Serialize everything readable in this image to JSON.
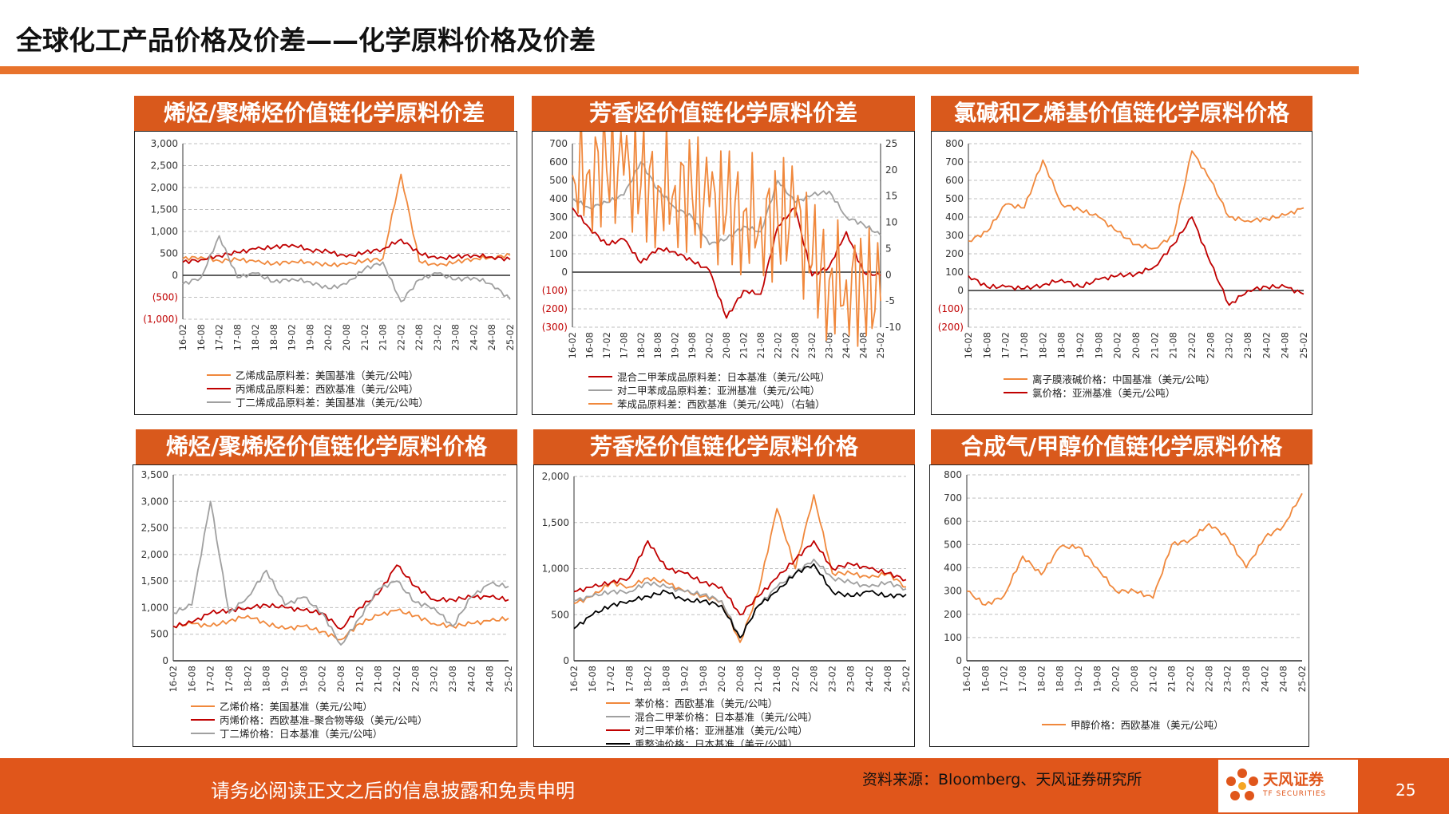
{
  "page": {
    "title": "全球化工产品价格及价差——化学原料价格及价差",
    "footer_notice": "请务必阅读正文之后的信息披露和免责申明",
    "source": "资料来源：Bloomberg、天风证券研究所",
    "page_number": "25",
    "logo_text": "天风证券",
    "logo_sub": "TF SECURITIES",
    "logo_icon": "flower-logo-icon"
  },
  "colors": {
    "accent_orange": "#E8732C",
    "header_orange": "#D9591C",
    "footer_orange": "#E0561B",
    "series_orange": "#F0883C",
    "series_red": "#C00000",
    "series_gray": "#A0A0A0",
    "series_black": "#000000"
  },
  "panels": [
    {
      "header": "烯烃/聚烯烃价值链化学原料价差"
    },
    {
      "header": "芳香烃价值链化学原料价差"
    },
    {
      "header": "氯碱和乙烯基价值链化学原料价格"
    },
    {
      "header": "烯烃/聚烯烃价值链化学原料价格"
    },
    {
      "header": "芳香烃价值链化学原料价格"
    },
    {
      "header": "合成气/甲醇价值链化学原料价格"
    }
  ],
  "chart_data": [
    {
      "type": "line",
      "x": [
        "16-02",
        "16-08",
        "17-02",
        "17-08",
        "18-02",
        "18-08",
        "19-02",
        "19-08",
        "20-02",
        "20-08",
        "21-02",
        "21-08",
        "22-02",
        "22-08",
        "23-02",
        "23-08",
        "24-02",
        "24-08",
        "25-02"
      ],
      "yticks": [
        "3,000",
        "2,500",
        "2,000",
        "1,500",
        "1,000",
        "500",
        "0",
        "(500)",
        "(1,000)"
      ],
      "ylim": [
        -1000,
        3000
      ],
      "series": [
        {
          "name": "乙烯成品原料差：美国基准（美元/公吨）",
          "color": "#F0883C",
          "values": [
            380,
            420,
            330,
            360,
            310,
            260,
            320,
            300,
            230,
            250,
            330,
            380,
            2300,
            320,
            220,
            300,
            380,
            410,
            460
          ]
        },
        {
          "name": "丙烯成品原料差：西欧基准（美元/公吨）",
          "color": "#C00000",
          "values": [
            300,
            360,
            450,
            520,
            600,
            640,
            700,
            580,
            540,
            420,
            520,
            600,
            820,
            500,
            380,
            420,
            460,
            420,
            360
          ]
        },
        {
          "name": "丁二烯成品原料差：美国基准（美元/公吨）",
          "color": "#A0A0A0",
          "values": [
            -200,
            -50,
            900,
            -50,
            50,
            -150,
            -80,
            -150,
            -300,
            -200,
            150,
            300,
            -600,
            -100,
            50,
            -100,
            -50,
            -200,
            -550
          ]
        }
      ]
    },
    {
      "type": "line",
      "x": [
        "16-02",
        "16-08",
        "17-02",
        "17-08",
        "18-02",
        "18-08",
        "19-02",
        "19-08",
        "20-02",
        "20-08",
        "21-02",
        "21-08",
        "22-02",
        "22-08",
        "23-02",
        "23-08",
        "24-02",
        "24-08",
        "25-02"
      ],
      "yticks": [
        "700",
        "600",
        "500",
        "400",
        "300",
        "200",
        "100",
        "0",
        "(100)",
        "(200)",
        "(300)"
      ],
      "yticks_right": [
        "25",
        "20",
        "15",
        "10",
        "5",
        "0",
        "-5",
        "-10"
      ],
      "ylim": [
        -300,
        700
      ],
      "ylim_right": [
        -10,
        25
      ],
      "series": [
        {
          "name": "混合二甲苯成品原料差：日本基准（美元/公吨）",
          "color": "#C00000",
          "axis": "left",
          "values": [
            350,
            240,
            150,
            180,
            50,
            130,
            110,
            60,
            10,
            -250,
            -100,
            -120,
            250,
            350,
            -20,
            30,
            220,
            0,
            -20
          ]
        },
        {
          "name": "对二甲苯成品原料差：亚洲基准（美元/公吨）",
          "color": "#A0A0A0",
          "axis": "left",
          "values": [
            400,
            350,
            380,
            420,
            600,
            450,
            350,
            300,
            150,
            180,
            250,
            220,
            500,
            380,
            420,
            440,
            300,
            260,
            200
          ]
        },
        {
          "name": "苯成品原料差：西欧基准（美元/公吨）（右轴）",
          "color": "#F0883C",
          "axis": "right",
          "values": [
            19,
            20,
            20,
            19,
            17,
            17,
            17,
            15,
            13,
            12,
            12,
            11,
            10,
            11,
            2,
            -1,
            -1,
            -2,
            -5
          ]
        }
      ]
    },
    {
      "type": "line",
      "x": [
        "16-02",
        "16-08",
        "17-02",
        "17-08",
        "18-02",
        "18-08",
        "19-02",
        "19-08",
        "20-02",
        "20-08",
        "21-02",
        "21-08",
        "22-02",
        "22-08",
        "23-02",
        "23-08",
        "24-02",
        "24-08",
        "25-02"
      ],
      "yticks": [
        "800",
        "700",
        "600",
        "500",
        "400",
        "300",
        "200",
        "100",
        "0",
        "(100)",
        "(200)"
      ],
      "ylim": [
        -200,
        800
      ],
      "series": [
        {
          "name": "离子膜液碱价格：中国基准（美元/公吨）",
          "color": "#F0883C",
          "values": [
            270,
            320,
            470,
            450,
            710,
            470,
            440,
            400,
            320,
            250,
            230,
            300,
            760,
            600,
            400,
            380,
            390,
            410,
            450
          ]
        },
        {
          "name": "氯价格：亚洲基准（美元/公吨）",
          "color": "#C00000",
          "values": [
            80,
            20,
            20,
            10,
            30,
            60,
            20,
            60,
            80,
            90,
            130,
            250,
            400,
            150,
            -80,
            0,
            20,
            20,
            -20
          ]
        }
      ]
    },
    {
      "type": "line",
      "x": [
        "16-02",
        "16-08",
        "17-02",
        "17-08",
        "18-02",
        "18-08",
        "19-02",
        "19-08",
        "20-02",
        "20-08",
        "21-02",
        "21-08",
        "22-02",
        "22-08",
        "23-02",
        "23-08",
        "24-02",
        "24-08",
        "25-02"
      ],
      "yticks": [
        "3,500",
        "3,000",
        "2,500",
        "2,000",
        "1,500",
        "1,000",
        "500",
        "0"
      ],
      "ylim": [
        0,
        3500
      ],
      "series": [
        {
          "name": "乙烯价格：美国基准（美元/公吨）",
          "color": "#F0883C",
          "values": [
            650,
            700,
            650,
            750,
            850,
            700,
            600,
            650,
            550,
            400,
            700,
            850,
            950,
            850,
            700,
            650,
            700,
            750,
            800
          ]
        },
        {
          "name": "丙烯价格：西欧基准–聚合物等级（美元/公吨）",
          "color": "#C00000",
          "values": [
            650,
            720,
            900,
            950,
            1000,
            1050,
            1000,
            950,
            900,
            600,
            1000,
            1250,
            1800,
            1400,
            1150,
            1150,
            1200,
            1200,
            1150
          ]
        },
        {
          "name": "丁二烯价格：日本基准（美元/公吨）",
          "color": "#A0A0A0",
          "values": [
            900,
            1050,
            3000,
            900,
            1200,
            1700,
            1050,
            1200,
            900,
            300,
            800,
            1350,
            1500,
            1100,
            1000,
            650,
            1200,
            1450,
            1400
          ]
        }
      ]
    },
    {
      "type": "line",
      "x": [
        "16-02",
        "16-08",
        "17-02",
        "17-08",
        "18-02",
        "18-08",
        "19-02",
        "19-08",
        "20-02",
        "20-08",
        "21-02",
        "21-08",
        "22-02",
        "22-08",
        "23-02",
        "23-08",
        "24-02",
        "24-08",
        "25-02"
      ],
      "yticks": [
        "2,000",
        "1,500",
        "1,000",
        "500",
        "0"
      ],
      "ylim": [
        0,
        2000
      ],
      "series": [
        {
          "name": "苯价格：西欧基准（美元/公吨）",
          "color": "#F0883C",
          "values": [
            620,
            700,
            850,
            800,
            900,
            850,
            750,
            700,
            650,
            200,
            750,
            1650,
            1000,
            1800,
            950,
            950,
            900,
            950,
            800
          ]
        },
        {
          "name": "混合二甲苯价格：日本基准（美元/公吨）",
          "color": "#A0A0A0",
          "values": [
            650,
            700,
            750,
            750,
            850,
            800,
            750,
            720,
            650,
            250,
            600,
            800,
            950,
            1100,
            900,
            850,
            800,
            850,
            780
          ]
        },
        {
          "name": "对二甲苯价格：亚洲基准（美元/公吨）",
          "color": "#C00000",
          "values": [
            750,
            800,
            850,
            900,
            1300,
            1000,
            950,
            850,
            800,
            500,
            700,
            900,
            1100,
            1300,
            1000,
            1050,
            1000,
            950,
            880
          ]
        },
        {
          "name": "重整油价格：日本基准（美元/公吨）",
          "color": "#000000",
          "values": [
            350,
            500,
            600,
            650,
            700,
            750,
            650,
            650,
            600,
            250,
            600,
            750,
            950,
            1050,
            750,
            700,
            750,
            700,
            720
          ]
        }
      ]
    },
    {
      "type": "line",
      "x": [
        "16-02",
        "16-08",
        "17-02",
        "17-08",
        "18-02",
        "18-08",
        "19-02",
        "19-08",
        "20-02",
        "20-08",
        "21-02",
        "21-08",
        "22-02",
        "22-08",
        "23-02",
        "23-08",
        "24-02",
        "24-08",
        "25-02"
      ],
      "yticks": [
        "800",
        "700",
        "600",
        "500",
        "400",
        "300",
        "200",
        "100",
        "0"
      ],
      "ylim": [
        0,
        800
      ],
      "series": [
        {
          "name": "甲醇价格：西欧基准（美元/公吨）",
          "color": "#F0883C",
          "values": [
            300,
            240,
            280,
            450,
            370,
            490,
            490,
            400,
            300,
            300,
            270,
            500,
            520,
            590,
            530,
            400,
            530,
            580,
            720
          ]
        }
      ]
    }
  ]
}
